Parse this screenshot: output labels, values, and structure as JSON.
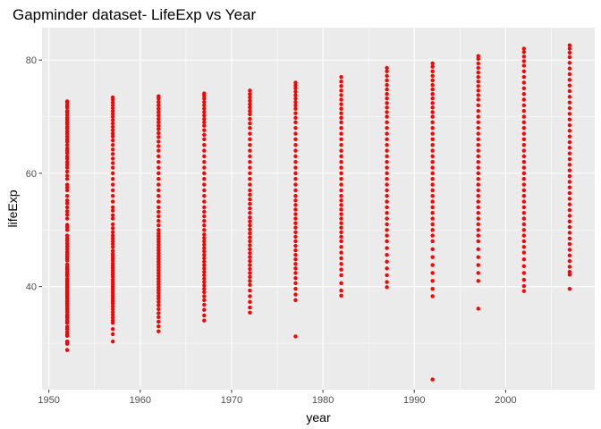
{
  "chart_data": {
    "type": "scatter",
    "title": "Gapminder dataset- LifeExp vs Year",
    "xlabel": "year",
    "ylabel": "lifeExp",
    "xlim": [
      1949.25,
      2009.75
    ],
    "ylim": [
      21.8,
      85.7
    ],
    "x_ticks": [
      1950,
      1960,
      1970,
      1980,
      1990,
      2000
    ],
    "x_tick_labels": [
      "1950",
      "1960",
      "1970",
      "1980",
      "1990",
      "2000"
    ],
    "y_ticks": [
      40,
      60,
      80
    ],
    "y_tick_labels": [
      "40",
      "60",
      "80"
    ],
    "grid": true,
    "legend": "none",
    "colors": {
      "panel": "#ebebeb",
      "grid": "#ffffff",
      "point": "#ff0000"
    },
    "series": [
      {
        "color": "#ff0000",
        "groups": [
          {
            "x": 1952,
            "y": [
              28.8,
              29.9,
              30.0,
              30.3,
              31.3,
              31.6,
              32.0,
              32.5,
              32.9,
              33.6,
              33.7,
              34.0,
              34.5,
              34.8,
              35.0,
              35.5,
              35.9,
              36.3,
              36.7,
              37.0,
              37.3,
              37.5,
              37.9,
              38.1,
              38.4,
              38.6,
              38.9,
              39.0,
              39.3,
              39.6,
              39.9,
              40.0,
              40.3,
              40.5,
              40.8,
              41.0,
              41.2,
              41.4,
              41.9,
              42.0,
              42.1,
              42.3,
              42.6,
              43.0,
              43.2,
              43.5,
              43.9,
              44.6,
              45.0,
              45.3,
              45.7,
              46.1,
              46.6,
              47.1,
              47.6,
              48.1,
              48.5,
              49.0,
              50.0,
              50.5,
              50.9,
              52.0,
              52.7,
              53.3,
              54.0,
              54.7,
              55.2,
              56.0,
              57.0,
              57.5,
              58.0,
              59.0,
              59.6,
              60.3,
              61.0,
              61.5,
              62.0,
              62.6,
              63.0,
              63.6,
              64.0,
              64.4,
              65.0,
              65.6,
              66.0,
              66.5,
              67.0,
              67.4,
              67.9,
              68.2,
              68.7,
              69.0,
              69.4,
              69.8,
              70.3,
              70.8,
              71.0,
              71.6,
              72.0,
              72.5,
              72.7
            ]
          },
          {
            "x": 1957,
            "y": [
              30.3,
              31.6,
              32.5,
              33.6,
              34.0,
              34.5,
              35.0,
              35.5,
              36.0,
              36.5,
              37.0,
              37.3,
              37.6,
              38.0,
              38.4,
              38.8,
              39.2,
              39.6,
              40.0,
              40.4,
              40.8,
              41.2,
              41.7,
              42.1,
              42.5,
              42.9,
              43.3,
              43.7,
              44.1,
              44.6,
              45.0,
              45.4,
              45.8,
              46.3,
              47.0,
              47.5,
              48.0,
              48.5,
              49.0,
              49.6,
              50.3,
              51.0,
              52.0,
              52.6,
              53.4,
              54.0,
              55.0,
              56.0,
              57.0,
              58.0,
              59.0,
              60.0,
              61.0,
              61.8,
              62.6,
              63.4,
              64.2,
              65.0,
              65.8,
              66.5,
              67.0,
              67.6,
              68.2,
              68.8,
              69.4,
              70.0,
              70.5,
              71.0,
              71.5,
              72.0,
              72.5,
              73.0,
              73.4
            ]
          },
          {
            "x": 1962,
            "y": [
              32.1,
              33.0,
              33.8,
              34.6,
              35.3,
              36.0,
              36.7,
              37.3,
              37.9,
              38.4,
              38.9,
              39.4,
              39.9,
              40.4,
              40.9,
              41.4,
              41.9,
              42.4,
              42.9,
              43.4,
              43.9,
              44.4,
              44.9,
              45.4,
              45.9,
              46.4,
              46.9,
              47.4,
              47.9,
              48.4,
              48.9,
              49.4,
              50.0,
              50.8,
              51.6,
              52.4,
              53.2,
              54.0,
              55.0,
              56.0,
              57.0,
              58.0,
              59.0,
              60.0,
              61.0,
              62.0,
              63.0,
              64.0,
              64.8,
              65.6,
              66.4,
              67.1,
              67.8,
              68.4,
              69.0,
              69.6,
              70.2,
              70.8,
              71.4,
              72.0,
              72.6,
              73.2,
              73.6
            ]
          },
          {
            "x": 1967,
            "y": [
              34.0,
              34.9,
              35.9,
              36.8,
              37.6,
              38.3,
              39.0,
              39.6,
              40.2,
              40.8,
              41.4,
              42.0,
              42.6,
              43.2,
              43.8,
              44.4,
              45.0,
              45.6,
              46.2,
              46.8,
              47.4,
              48.0,
              48.6,
              49.2,
              50.0,
              50.8,
              51.6,
              52.4,
              53.2,
              54.0,
              55.0,
              56.0,
              57.0,
              58.0,
              59.0,
              60.0,
              61.0,
              62.0,
              63.0,
              64.0,
              65.0,
              66.0,
              66.8,
              67.6,
              68.4,
              69.0,
              69.6,
              70.2,
              70.8,
              71.4,
              72.0,
              72.6,
              73.2,
              73.7,
              74.1
            ]
          },
          {
            "x": 1972,
            "y": [
              35.4,
              36.3,
              37.3,
              38.3,
              39.3,
              40.3,
              41.0,
              41.7,
              42.4,
              43.1,
              43.8,
              44.5,
              45.2,
              45.9,
              46.6,
              47.3,
              48.0,
              48.7,
              49.4,
              50.1,
              50.8,
              51.5,
              52.2,
              53.0,
              53.8,
              54.6,
              55.4,
              56.2,
              57.0,
              58.0,
              59.0,
              60.0,
              61.0,
              62.0,
              63.0,
              64.0,
              65.0,
              66.0,
              67.0,
              68.0,
              68.8,
              69.6,
              70.4,
              71.0,
              71.6,
              72.2,
              72.8,
              73.4,
              74.0,
              74.6
            ]
          },
          {
            "x": 1977,
            "y": [
              31.2,
              37.6,
              38.6,
              39.6,
              40.6,
              41.5,
              42.4,
              43.2,
              44.0,
              44.8,
              45.6,
              46.4,
              47.2,
              48.0,
              48.8,
              49.6,
              50.4,
              51.2,
              52.0,
              52.8,
              53.6,
              54.4,
              55.2,
              56.0,
              57.0,
              58.0,
              59.0,
              60.0,
              61.0,
              62.0,
              63.0,
              64.0,
              65.0,
              66.0,
              67.0,
              68.0,
              69.0,
              69.8,
              70.6,
              71.4,
              72.0,
              72.6,
              73.2,
              73.8,
              74.4,
              75.0,
              75.5,
              76.0
            ]
          },
          {
            "x": 1982,
            "y": [
              38.4,
              39.3,
              40.6,
              42.0,
              43.0,
              44.0,
              45.0,
              46.0,
              47.0,
              48.0,
              48.8,
              49.6,
              50.4,
              51.2,
              52.0,
              52.8,
              53.6,
              54.4,
              55.2,
              56.0,
              57.0,
              58.0,
              59.0,
              60.0,
              61.0,
              62.0,
              63.0,
              64.0,
              65.0,
              66.0,
              67.0,
              68.0,
              69.0,
              69.8,
              70.6,
              71.4,
              72.2,
              73.0,
              73.8,
              74.6,
              75.4,
              76.2,
              77.0
            ]
          },
          {
            "x": 1987,
            "y": [
              39.9,
              40.8,
              42.0,
              43.2,
              44.4,
              45.6,
              46.8,
              48.0,
              49.0,
              50.0,
              51.0,
              52.0,
              53.0,
              54.0,
              55.0,
              56.0,
              57.0,
              58.0,
              59.0,
              60.0,
              61.0,
              62.0,
              63.0,
              64.0,
              65.0,
              66.0,
              67.0,
              68.0,
              69.0,
              70.0,
              70.8,
              71.6,
              72.4,
              73.2,
              74.0,
              74.8,
              75.6,
              76.4,
              77.2,
              78.0,
              78.6
            ]
          },
          {
            "x": 1992,
            "y": [
              23.6,
              38.3,
              39.6,
              41.0,
              42.4,
              43.8,
              45.2,
              46.6,
              48.0,
              49.0,
              50.0,
              51.0,
              52.0,
              53.0,
              54.0,
              55.0,
              56.0,
              57.0,
              58.0,
              59.0,
              60.0,
              61.0,
              62.0,
              63.0,
              64.0,
              65.0,
              66.0,
              67.0,
              68.0,
              69.0,
              70.0,
              70.8,
              71.6,
              72.4,
              73.2,
              74.0,
              74.8,
              75.6,
              76.4,
              77.2,
              78.0,
              78.8,
              79.4
            ]
          },
          {
            "x": 1997,
            "y": [
              36.1,
              41.0,
              42.4,
              43.8,
              45.2,
              46.6,
              48.0,
              49.0,
              50.0,
              51.0,
              52.0,
              53.0,
              54.0,
              55.0,
              56.0,
              57.0,
              58.0,
              59.0,
              60.0,
              61.0,
              62.0,
              63.0,
              64.0,
              65.0,
              66.0,
              67.0,
              68.0,
              69.0,
              70.0,
              71.0,
              72.0,
              73.0,
              73.8,
              74.6,
              75.4,
              76.2,
              77.0,
              77.8,
              78.6,
              79.4,
              80.2,
              80.7
            ]
          },
          {
            "x": 2002,
            "y": [
              39.2,
              40.1,
              41.2,
              42.4,
              43.6,
              44.8,
              46.0,
              47.0,
              48.0,
              49.0,
              50.0,
              51.0,
              52.0,
              53.0,
              54.0,
              55.0,
              56.0,
              57.0,
              58.0,
              59.0,
              60.0,
              61.0,
              62.0,
              63.0,
              64.0,
              65.0,
              66.0,
              67.0,
              68.0,
              69.0,
              70.0,
              71.0,
              72.0,
              73.0,
              74.0,
              75.0,
              76.0,
              77.0,
              78.0,
              79.0,
              79.8,
              80.6,
              81.4,
              82.0
            ]
          },
          {
            "x": 2007,
            "y": [
              39.6,
              42.1,
              42.6,
              43.5,
              44.5,
              45.5,
              46.5,
              47.5,
              48.5,
              49.5,
              50.5,
              51.5,
              52.5,
              53.5,
              54.5,
              55.5,
              56.5,
              57.5,
              58.5,
              59.5,
              60.5,
              61.5,
              62.5,
              63.5,
              64.5,
              65.5,
              66.5,
              67.5,
              68.5,
              69.5,
              70.5,
              71.5,
              72.5,
              73.5,
              74.5,
              75.5,
              76.5,
              77.5,
              78.5,
              79.5,
              80.5,
              81.3,
              82.0,
              82.6
            ]
          }
        ]
      }
    ]
  }
}
